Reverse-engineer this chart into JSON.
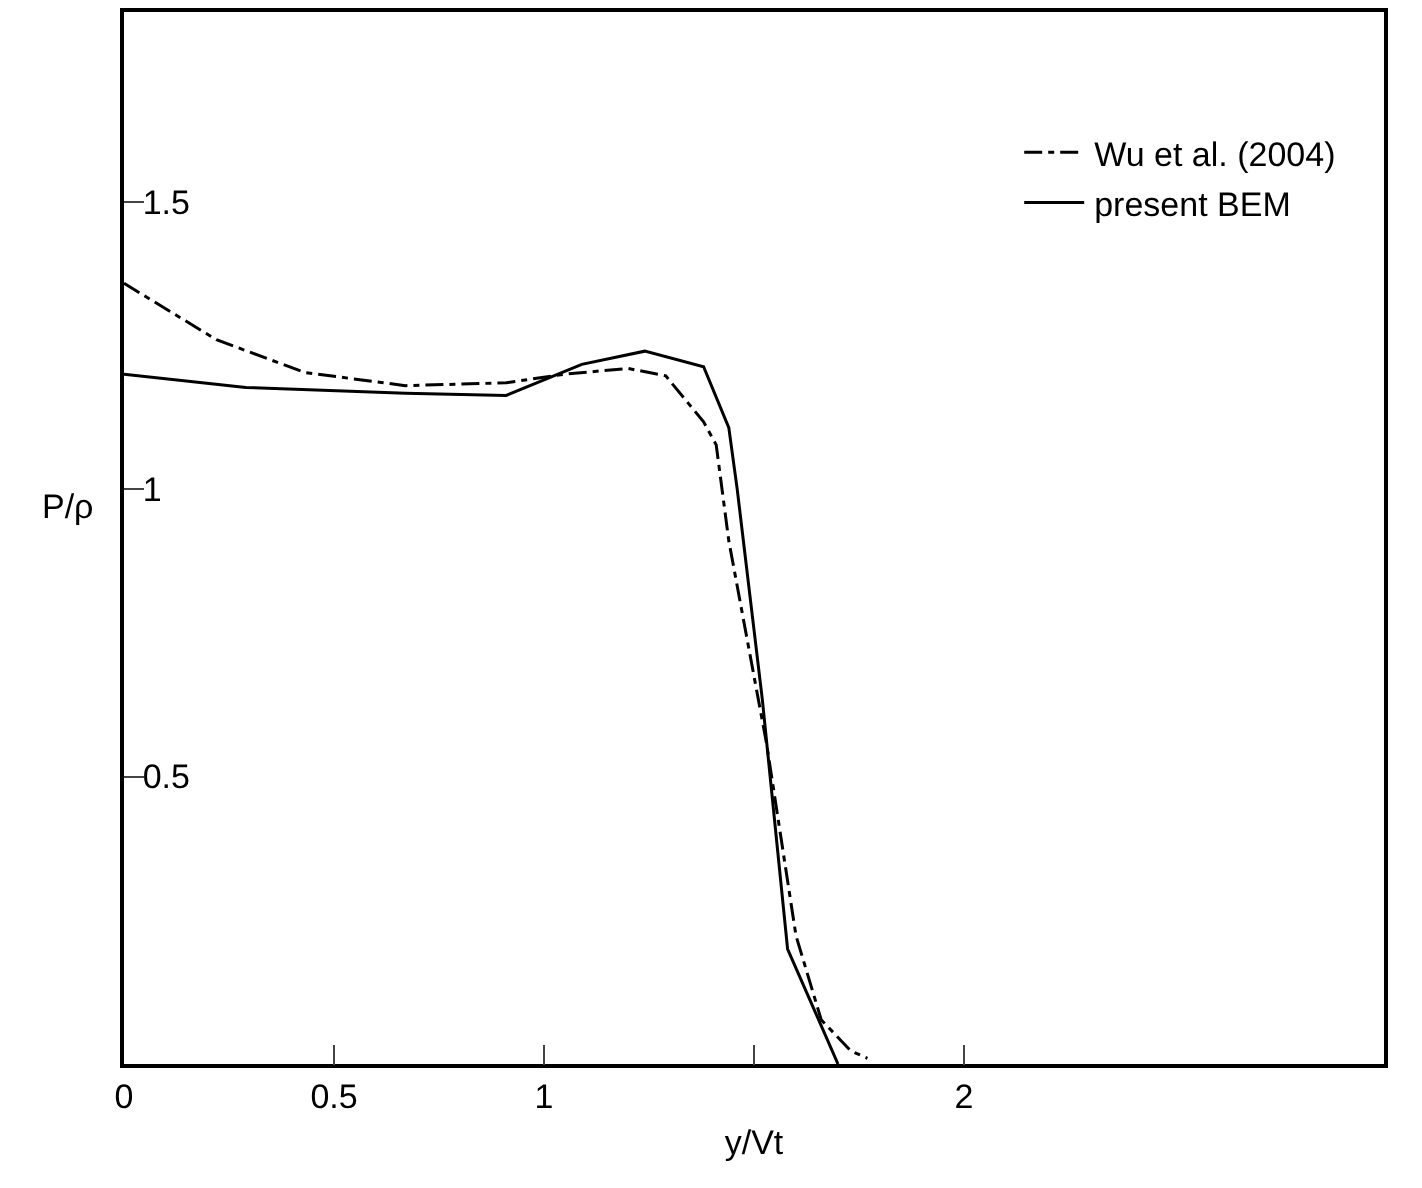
{
  "chart_data": {
    "type": "line",
    "xlabel": "y/Vt",
    "ylabel": "P/ρ",
    "series": [
      {
        "name": "Wu et al. (2004)",
        "color": "#000000",
        "line_style": "dashdot",
        "x": [
          0,
          0.22,
          0.43,
          0.67,
          0.91,
          1.05,
          1.2,
          1.29,
          1.38,
          1.41,
          1.44,
          1.53,
          1.6,
          1.66,
          1.73,
          1.77
        ],
        "values": [
          1.358,
          1.26,
          1.203,
          1.18,
          1.185,
          1.2,
          1.21,
          1.197,
          1.117,
          1.077,
          0.91,
          0.557,
          0.223,
          0.077,
          0.023,
          0.01
        ]
      },
      {
        "name": "present BEM",
        "color": "#000000",
        "line_style": "solid",
        "x": [
          0,
          0.29,
          0.67,
          0.91,
          1.09,
          1.24,
          1.38,
          1.44,
          1.46,
          1.52,
          1.58,
          1.7
        ],
        "values": [
          1.2,
          1.177,
          1.167,
          1.163,
          1.217,
          1.24,
          1.213,
          1.107,
          1.0,
          0.633,
          0.2,
          0
        ]
      }
    ],
    "xlim": [
      0,
      3
    ],
    "ylim": [
      0,
      1.83
    ],
    "xticks": [
      0,
      0.5,
      1,
      {
        "value": 1.5,
        "label": null
      },
      2
    ],
    "yticks": [
      0.5,
      1,
      1.5
    ],
    "grid": false,
    "legend": "top right",
    "marker": "none"
  }
}
